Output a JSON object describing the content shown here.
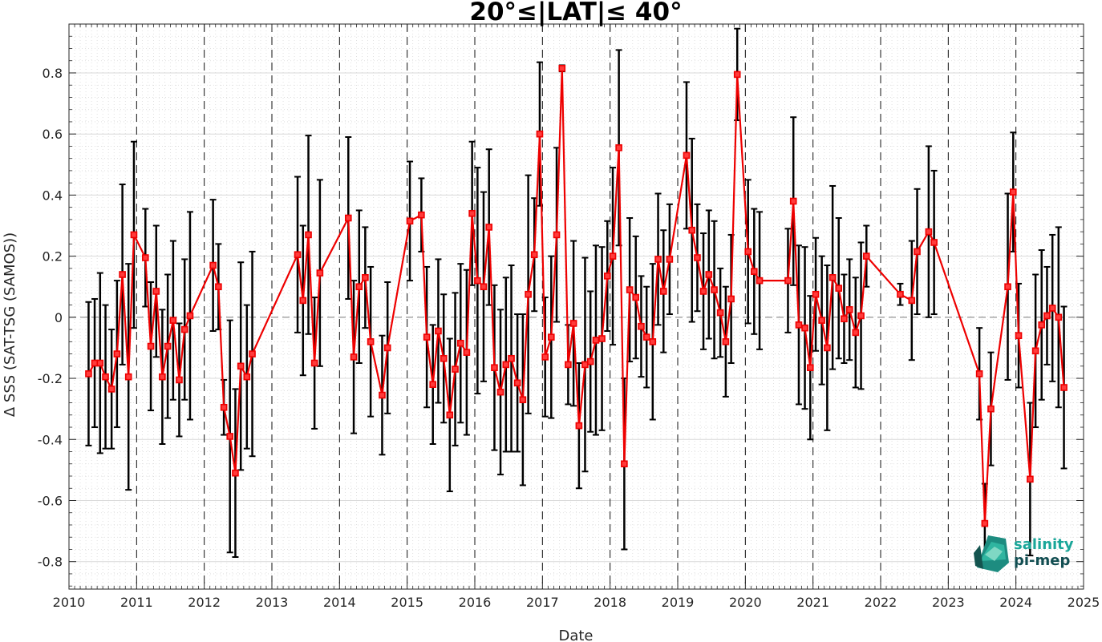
{
  "chart_data": {
    "type": "line",
    "title": "20°≤|LAT|≤ 40°",
    "xlabel": "Date",
    "ylabel": "Δ SSS (SAT-TSG (SAMOS))",
    "xlim": [
      2010,
      2025
    ],
    "ylim": [
      -0.89,
      0.96
    ],
    "x_ticks": [
      "2010",
      "2011",
      "2012",
      "2013",
      "2014",
      "2015",
      "2016",
      "2017",
      "2018",
      "2019",
      "2020",
      "2021",
      "2022",
      "2023",
      "2024",
      "2025"
    ],
    "y_ticks": [
      "-0.8",
      "-0.6",
      "-0.4",
      "-0.2",
      "0",
      "0.2",
      "0.4",
      "0.6",
      "0.8"
    ],
    "grid": true,
    "minor_grid": "dotted",
    "year_boundaries": "dashed",
    "zero_line": "dashed",
    "colors": {
      "series": "#ee0000",
      "errorbar": "#000000",
      "grid": "#d9d9d9"
    },
    "series": [
      {
        "points": [
          [
            2010.29,
            -0.185,
            0.235
          ],
          [
            2010.38,
            -0.15,
            0.21
          ],
          [
            2010.46,
            -0.15,
            0.295
          ],
          [
            2010.54,
            -0.195,
            0.235
          ],
          [
            2010.63,
            -0.235,
            0.195
          ],
          [
            2010.71,
            -0.12,
            0.24
          ],
          [
            2010.79,
            0.14,
            0.295
          ],
          [
            2010.88,
            -0.195,
            0.37
          ],
          [
            2010.96,
            0.27,
            0.305
          ],
          [
            2011.13,
            0.195,
            0.16
          ],
          [
            2011.21,
            -0.095,
            0.21
          ],
          [
            2011.29,
            0.085,
            0.215
          ],
          [
            2011.38,
            -0.195,
            0.22
          ],
          [
            2011.46,
            -0.095,
            0.235
          ],
          [
            2011.54,
            -0.01,
            0.26
          ],
          [
            2011.63,
            -0.205,
            0.185
          ],
          [
            2011.71,
            -0.04,
            0.23
          ],
          [
            2011.79,
            0.005,
            0.34
          ],
          [
            2012.13,
            0.17,
            0.215
          ],
          [
            2012.21,
            0.1,
            0.14
          ],
          [
            2012.29,
            -0.295,
            0.09
          ],
          [
            2012.38,
            -0.39,
            0.38
          ],
          [
            2012.46,
            -0.51,
            0.275
          ],
          [
            2012.54,
            -0.16,
            0.34
          ],
          [
            2012.63,
            -0.195,
            0.235
          ],
          [
            2012.71,
            -0.12,
            0.335
          ],
          [
            2013.38,
            0.205,
            0.255
          ],
          [
            2013.46,
            0.055,
            0.245
          ],
          [
            2013.54,
            0.27,
            0.325
          ],
          [
            2013.63,
            -0.15,
            0.215
          ],
          [
            2013.71,
            0.145,
            0.305
          ],
          [
            2014.13,
            0.325,
            0.265
          ],
          [
            2014.21,
            -0.13,
            0.25
          ],
          [
            2014.29,
            0.1,
            0.25
          ],
          [
            2014.38,
            0.13,
            0.165
          ],
          [
            2014.46,
            -0.08,
            0.245
          ],
          [
            2014.63,
            -0.255,
            0.195
          ],
          [
            2014.71,
            -0.1,
            0.215
          ],
          [
            2015.04,
            0.315,
            0.195
          ],
          [
            2015.21,
            0.335,
            0.12
          ],
          [
            2015.29,
            -0.065,
            0.23
          ],
          [
            2015.38,
            -0.22,
            0.195
          ],
          [
            2015.46,
            -0.045,
            0.235
          ],
          [
            2015.54,
            -0.135,
            0.21
          ],
          [
            2015.63,
            -0.32,
            0.25
          ],
          [
            2015.71,
            -0.17,
            0.25
          ],
          [
            2015.79,
            -0.085,
            0.26
          ],
          [
            2015.88,
            -0.115,
            0.27
          ],
          [
            2015.96,
            0.34,
            0.235
          ],
          [
            2016.04,
            0.12,
            0.37
          ],
          [
            2016.13,
            0.1,
            0.31
          ],
          [
            2016.21,
            0.295,
            0.255
          ],
          [
            2016.29,
            -0.165,
            0.27
          ],
          [
            2016.38,
            -0.245,
            0.27
          ],
          [
            2016.46,
            -0.155,
            0.285
          ],
          [
            2016.54,
            -0.135,
            0.305
          ],
          [
            2016.63,
            -0.215,
            0.225
          ],
          [
            2016.71,
            -0.27,
            0.28
          ],
          [
            2016.79,
            0.075,
            0.39
          ],
          [
            2016.88,
            0.205,
            0.185
          ],
          [
            2016.96,
            0.6,
            0.235
          ],
          [
            2017.04,
            -0.13,
            0.195
          ],
          [
            2017.13,
            -0.065,
            0.265
          ],
          [
            2017.21,
            0.27,
            0.285
          ],
          [
            2017.29,
            0.815,
            0.01
          ],
          [
            2017.38,
            -0.155,
            0.13
          ],
          [
            2017.46,
            -0.02,
            0.27
          ],
          [
            2017.54,
            -0.355,
            0.205
          ],
          [
            2017.63,
            -0.155,
            0.35
          ],
          [
            2017.71,
            -0.145,
            0.23
          ],
          [
            2017.79,
            -0.075,
            0.31
          ],
          [
            2017.88,
            -0.07,
            0.3
          ],
          [
            2017.96,
            0.135,
            0.18
          ],
          [
            2018.04,
            0.2,
            0.29
          ],
          [
            2018.13,
            0.555,
            0.32
          ],
          [
            2018.21,
            -0.48,
            0.28
          ],
          [
            2018.29,
            0.09,
            0.235
          ],
          [
            2018.38,
            0.065,
            0.2
          ],
          [
            2018.46,
            -0.03,
            0.165
          ],
          [
            2018.54,
            -0.065,
            0.165
          ],
          [
            2018.63,
            -0.08,
            0.255
          ],
          [
            2018.71,
            0.19,
            0.215
          ],
          [
            2018.79,
            0.085,
            0.2
          ],
          [
            2018.88,
            0.19,
            0.18
          ],
          [
            2019.13,
            0.53,
            0.24
          ],
          [
            2019.21,
            0.285,
            0.3
          ],
          [
            2019.29,
            0.195,
            0.175
          ],
          [
            2019.38,
            0.085,
            0.19
          ],
          [
            2019.46,
            0.14,
            0.21
          ],
          [
            2019.54,
            0.09,
            0.225
          ],
          [
            2019.63,
            0.015,
            0.145
          ],
          [
            2019.71,
            -0.08,
            0.18
          ],
          [
            2019.79,
            0.06,
            0.21
          ],
          [
            2019.88,
            0.795,
            0.15
          ],
          [
            2020.04,
            0.215,
            0.235
          ],
          [
            2020.13,
            0.15,
            0.205
          ],
          [
            2020.21,
            0.12,
            0.225
          ],
          [
            2020.63,
            0.12,
            0.17
          ],
          [
            2020.71,
            0.38,
            0.275
          ],
          [
            2020.79,
            -0.025,
            0.26
          ],
          [
            2020.88,
            -0.035,
            0.265
          ],
          [
            2020.96,
            -0.165,
            0.235
          ],
          [
            2021.04,
            0.075,
            0.185
          ],
          [
            2021.13,
            -0.01,
            0.21
          ],
          [
            2021.21,
            -0.1,
            0.27
          ],
          [
            2021.29,
            0.13,
            0.3
          ],
          [
            2021.38,
            0.095,
            0.23
          ],
          [
            2021.46,
            -0.005,
            0.145
          ],
          [
            2021.54,
            0.025,
            0.165
          ],
          [
            2021.63,
            -0.05,
            0.18
          ],
          [
            2021.71,
            0.005,
            0.24
          ],
          [
            2021.79,
            0.2,
            0.1
          ],
          [
            2022.29,
            0.075,
            0.035
          ],
          [
            2022.46,
            0.055,
            0.195
          ],
          [
            2022.54,
            0.215,
            0.205
          ],
          [
            2022.71,
            0.28,
            0.28
          ],
          [
            2022.79,
            0.245,
            0.235
          ],
          [
            2023.46,
            -0.185,
            0.15
          ],
          [
            2023.54,
            -0.675,
            0.13
          ],
          [
            2023.63,
            -0.3,
            0.185
          ],
          [
            2023.88,
            0.1,
            0.305
          ],
          [
            2023.96,
            0.41,
            0.195
          ],
          [
            2024.04,
            -0.06,
            0.17
          ],
          [
            2024.21,
            -0.53,
            0.25
          ],
          [
            2024.29,
            -0.11,
            0.25
          ],
          [
            2024.38,
            -0.025,
            0.245
          ],
          [
            2024.46,
            0.005,
            0.16
          ],
          [
            2024.54,
            0.03,
            0.24
          ],
          [
            2024.63,
            0.0,
            0.295
          ],
          [
            2024.71,
            -0.23,
            0.265
          ]
        ]
      }
    ]
  },
  "logo": {
    "line1": "salinity",
    "line2": "pi-mep",
    "color1": "#1aa699",
    "color2": "#124e52"
  }
}
